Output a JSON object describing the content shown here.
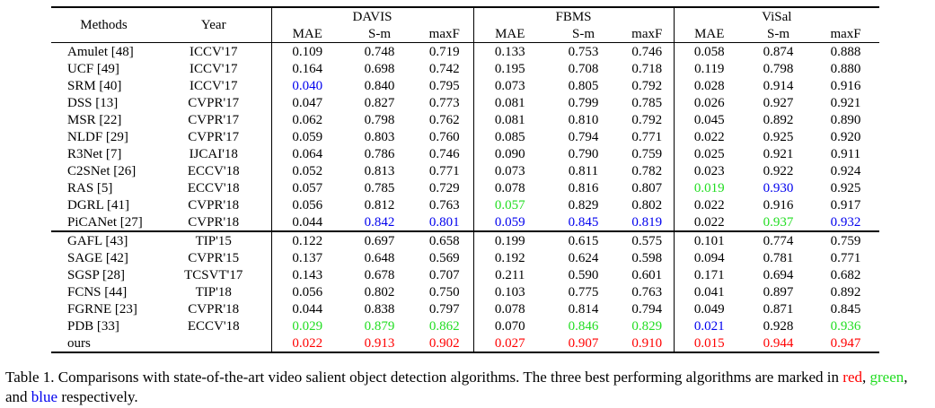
{
  "table": {
    "header": {
      "methods_label": "Methods",
      "year_label": "Year",
      "datasets": [
        "DAVIS",
        "FBMS",
        "ViSal"
      ],
      "metrics": [
        "MAE",
        "S-m",
        "maxF"
      ]
    },
    "groups": [
      {
        "rows": [
          {
            "method": "Amulet [48]",
            "year": "ICCV'17",
            "vals": [
              "0.109",
              "0.748",
              "0.719",
              "0.133",
              "0.753",
              "0.746",
              "0.058",
              "0.874",
              "0.888"
            ],
            "colors": [
              "",
              "",
              "",
              "",
              "",
              "",
              "",
              "",
              ""
            ]
          },
          {
            "method": "UCF [49]",
            "year": "ICCV'17",
            "vals": [
              "0.164",
              "0.698",
              "0.742",
              "0.195",
              "0.708",
              "0.718",
              "0.119",
              "0.798",
              "0.880"
            ],
            "colors": [
              "",
              "",
              "",
              "",
              "",
              "",
              "",
              "",
              ""
            ]
          },
          {
            "method": "SRM [40]",
            "year": "ICCV'17",
            "vals": [
              "0.040",
              "0.840",
              "0.795",
              "0.073",
              "0.805",
              "0.792",
              "0.028",
              "0.914",
              "0.916"
            ],
            "colors": [
              "blue",
              "",
              "",
              "",
              "",
              "",
              "",
              "",
              ""
            ]
          },
          {
            "method": "DSS [13]",
            "year": "CVPR'17",
            "vals": [
              "0.047",
              "0.827",
              "0.773",
              "0.081",
              "0.799",
              "0.785",
              "0.026",
              "0.927",
              "0.921"
            ],
            "colors": [
              "",
              "",
              "",
              "",
              "",
              "",
              "",
              "",
              ""
            ]
          },
          {
            "method": "MSR [22]",
            "year": "CVPR'17",
            "vals": [
              "0.062",
              "0.798",
              "0.762",
              "0.081",
              "0.810",
              "0.792",
              "0.045",
              "0.892",
              "0.890"
            ],
            "colors": [
              "",
              "",
              "",
              "",
              "",
              "",
              "",
              "",
              ""
            ]
          },
          {
            "method": "NLDF [29]",
            "year": "CVPR'17",
            "vals": [
              "0.059",
              "0.803",
              "0.760",
              "0.085",
              "0.794",
              "0.771",
              "0.022",
              "0.925",
              "0.920"
            ],
            "colors": [
              "",
              "",
              "",
              "",
              "",
              "",
              "",
              "",
              ""
            ]
          },
          {
            "method": "R3Net [7]",
            "year": "IJCAI'18",
            "vals": [
              "0.064",
              "0.786",
              "0.746",
              "0.090",
              "0.790",
              "0.759",
              "0.025",
              "0.921",
              "0.911"
            ],
            "colors": [
              "",
              "",
              "",
              "",
              "",
              "",
              "",
              "",
              ""
            ]
          },
          {
            "method": "C2SNet [26]",
            "year": "ECCV'18",
            "vals": [
              "0.052",
              "0.813",
              "0.771",
              "0.073",
              "0.811",
              "0.782",
              "0.023",
              "0.922",
              "0.924"
            ],
            "colors": [
              "",
              "",
              "",
              "",
              "",
              "",
              "",
              "",
              ""
            ]
          },
          {
            "method": "RAS [5]",
            "year": "ECCV'18",
            "vals": [
              "0.057",
              "0.785",
              "0.729",
              "0.078",
              "0.816",
              "0.807",
              "0.019",
              "0.930",
              "0.925"
            ],
            "colors": [
              "",
              "",
              "",
              "",
              "",
              "",
              "green",
              "blue",
              ""
            ]
          },
          {
            "method": "DGRL [41]",
            "year": "CVPR'18",
            "vals": [
              "0.056",
              "0.812",
              "0.763",
              "0.057",
              "0.829",
              "0.802",
              "0.022",
              "0.916",
              "0.917"
            ],
            "colors": [
              "",
              "",
              "",
              "green",
              "",
              "",
              "",
              "",
              ""
            ]
          },
          {
            "method": "PiCANet [27]",
            "year": "CVPR'18",
            "vals": [
              "0.044",
              "0.842",
              "0.801",
              "0.059",
              "0.845",
              "0.819",
              "0.022",
              "0.937",
              "0.932"
            ],
            "colors": [
              "",
              "blue",
              "blue",
              "blue",
              "blue",
              "blue",
              "",
              "green",
              "blue"
            ]
          }
        ]
      },
      {
        "rows": [
          {
            "method": "GAFL [43]",
            "year": "TIP'15",
            "vals": [
              "0.122",
              "0.697",
              "0.658",
              "0.199",
              "0.615",
              "0.575",
              "0.101",
              "0.774",
              "0.759"
            ],
            "colors": [
              "",
              "",
              "",
              "",
              "",
              "",
              "",
              "",
              ""
            ]
          },
          {
            "method": "SAGE [42]",
            "year": "CVPR'15",
            "vals": [
              "0.137",
              "0.648",
              "0.569",
              "0.192",
              "0.624",
              "0.598",
              "0.094",
              "0.781",
              "0.771"
            ],
            "colors": [
              "",
              "",
              "",
              "",
              "",
              "",
              "",
              "",
              ""
            ]
          },
          {
            "method": "SGSP [28]",
            "year": "TCSVT'17",
            "vals": [
              "0.143",
              "0.678",
              "0.707",
              "0.211",
              "0.590",
              "0.601",
              "0.171",
              "0.694",
              "0.682"
            ],
            "colors": [
              "",
              "",
              "",
              "",
              "",
              "",
              "",
              "",
              ""
            ]
          },
          {
            "method": "FCNS [44]",
            "year": "TIP'18",
            "vals": [
              "0.056",
              "0.802",
              "0.750",
              "0.103",
              "0.775",
              "0.763",
              "0.041",
              "0.897",
              "0.892"
            ],
            "colors": [
              "",
              "",
              "",
              "",
              "",
              "",
              "",
              "",
              ""
            ]
          },
          {
            "method": "FGRNE [23]",
            "year": "CVPR'18",
            "vals": [
              "0.044",
              "0.838",
              "0.797",
              "0.078",
              "0.814",
              "0.794",
              "0.049",
              "0.871",
              "0.845"
            ],
            "colors": [
              "",
              "",
              "",
              "",
              "",
              "",
              "",
              "",
              ""
            ]
          },
          {
            "method": "PDB [33]",
            "year": "ECCV'18",
            "vals": [
              "0.029",
              "0.879",
              "0.862",
              "0.070",
              "0.846",
              "0.829",
              "0.021",
              "0.928",
              "0.936"
            ],
            "colors": [
              "green",
              "green",
              "green",
              "",
              "green",
              "green",
              "blue",
              "",
              "green"
            ]
          },
          {
            "method": "ours",
            "year": "",
            "vals": [
              "0.022",
              "0.913",
              "0.902",
              "0.027",
              "0.907",
              "0.910",
              "0.015",
              "0.944",
              "0.947"
            ],
            "colors": [
              "red",
              "red",
              "red",
              "red",
              "red",
              "red",
              "red",
              "red",
              "red"
            ]
          }
        ]
      }
    ]
  },
  "caption": {
    "prefix": "Table 1. Comparisons with state-of-the-art video salient object detection algorithms. The three best performing algorithms are marked in ",
    "red_word": "red",
    "sep1": ", ",
    "green_word": "green",
    "sep2": ", and ",
    "blue_word": "blue",
    "suffix": " respectively."
  },
  "colors": {
    "red": "#ff0000",
    "green": "#22dd22",
    "blue": "#0000ee",
    "text": "#000000"
  }
}
